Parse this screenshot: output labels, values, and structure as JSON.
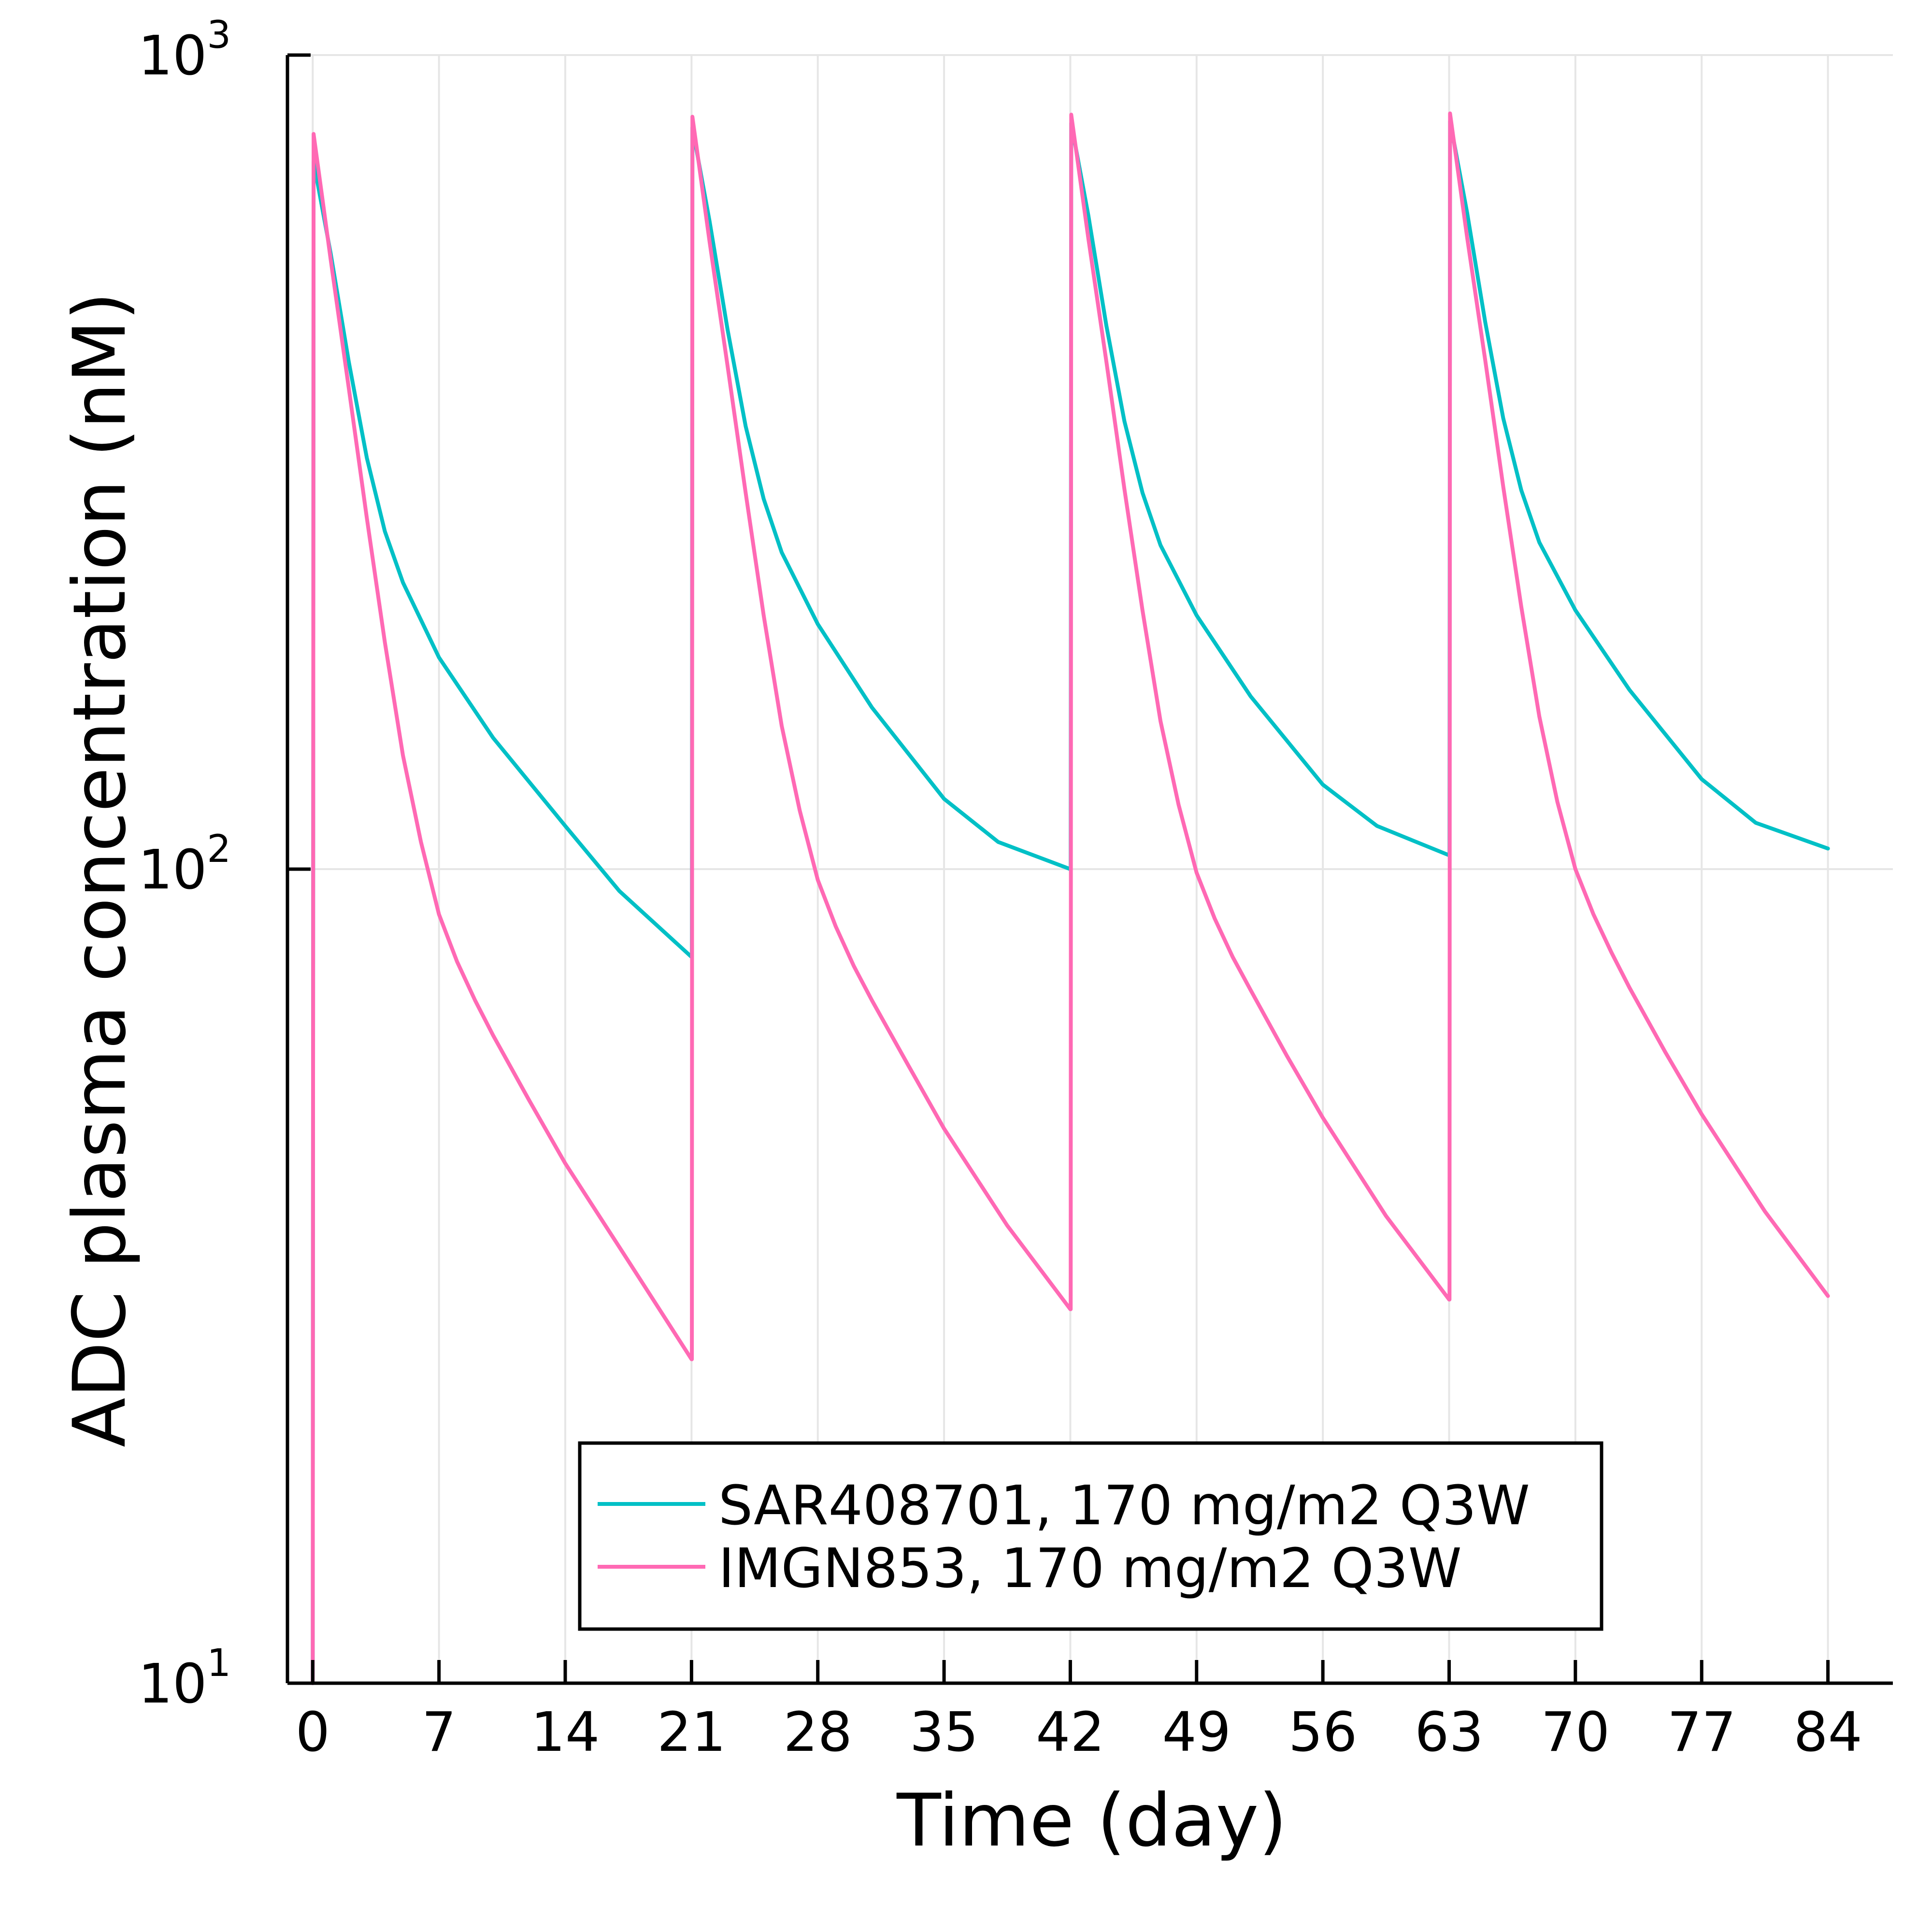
{
  "chart_data": {
    "type": "line",
    "title": "",
    "xlabel": "Time (day)",
    "ylabel": "ADC plasma concentration (nM)",
    "yscale": "log",
    "grid": true,
    "legend_position": "bottom-center",
    "xlim": [
      -1.4,
      87.6
    ],
    "ylim": [
      10,
      1000
    ],
    "xticks": [
      {
        "value": 0,
        "label": "0"
      },
      {
        "value": 7,
        "label": "7"
      },
      {
        "value": 14,
        "label": "14"
      },
      {
        "value": 21,
        "label": "21"
      },
      {
        "value": 28,
        "label": "28"
      },
      {
        "value": 35,
        "label": "35"
      },
      {
        "value": 42,
        "label": "42"
      },
      {
        "value": 49,
        "label": "49"
      },
      {
        "value": 56,
        "label": "56"
      },
      {
        "value": 63,
        "label": "63"
      },
      {
        "value": 70,
        "label": "70"
      },
      {
        "value": 77,
        "label": "77"
      },
      {
        "value": 84,
        "label": "84"
      }
    ],
    "yticks": [
      {
        "value": 10,
        "base": "10",
        "exp": "1"
      },
      {
        "value": 100,
        "base": "10",
        "exp": "2"
      },
      {
        "value": 1000,
        "base": "10",
        "exp": "3"
      }
    ],
    "series": [
      {
        "name": "SAR408701, 170 mg/m2 Q3W",
        "color": "#00c0c6",
        "points": [
          [
            0,
            10
          ],
          [
            0.05,
            740
          ],
          [
            1,
            570
          ],
          [
            2,
            420
          ],
          [
            3,
            320
          ],
          [
            4,
            260
          ],
          [
            5,
            225
          ],
          [
            7,
            182
          ],
          [
            10,
            145
          ],
          [
            14,
            113
          ],
          [
            17,
            94
          ],
          [
            21,
            78
          ],
          [
            21.02,
            78
          ],
          [
            21.05,
            815
          ],
          [
            22,
            625
          ],
          [
            23,
            460
          ],
          [
            24,
            350
          ],
          [
            25,
            285
          ],
          [
            26,
            245
          ],
          [
            28,
            200
          ],
          [
            31,
            158
          ],
          [
            35,
            122
          ],
          [
            38,
            108
          ],
          [
            42,
            100
          ],
          [
            42.02,
            100
          ],
          [
            42.05,
            825
          ],
          [
            43,
            635
          ],
          [
            44,
            465
          ],
          [
            45,
            355
          ],
          [
            46,
            290
          ],
          [
            47,
            250
          ],
          [
            49,
            205
          ],
          [
            52,
            163
          ],
          [
            56,
            127
          ],
          [
            59,
            113
          ],
          [
            63,
            104
          ],
          [
            63.02,
            104
          ],
          [
            63.05,
            830
          ],
          [
            64,
            640
          ],
          [
            65,
            470
          ],
          [
            66,
            358
          ],
          [
            67,
            292
          ],
          [
            68,
            252
          ],
          [
            70,
            208
          ],
          [
            73,
            166
          ],
          [
            77,
            129
          ],
          [
            80,
            114
          ],
          [
            84,
            106
          ]
        ]
      },
      {
        "name": "IMGN853, 170 mg/m2 Q3W",
        "color": "#ff69b4",
        "points": [
          [
            0,
            10
          ],
          [
            0.05,
            800
          ],
          [
            1,
            560
          ],
          [
            2,
            390
          ],
          [
            3,
            270
          ],
          [
            4,
            190
          ],
          [
            5,
            138
          ],
          [
            6,
            108
          ],
          [
            7,
            88
          ],
          [
            8,
            77
          ],
          [
            9,
            69
          ],
          [
            10,
            62.5
          ],
          [
            12,
            52
          ],
          [
            14,
            43.5
          ],
          [
            17.5,
            33
          ],
          [
            21,
            25
          ],
          [
            21.02,
            25
          ],
          [
            21.05,
            840
          ],
          [
            22,
            590
          ],
          [
            23,
            415
          ],
          [
            24,
            290
          ],
          [
            25,
            205
          ],
          [
            26,
            150
          ],
          [
            27,
            118
          ],
          [
            28,
            97
          ],
          [
            29,
            85
          ],
          [
            30,
            76
          ],
          [
            31,
            69
          ],
          [
            33,
            57.5
          ],
          [
            35,
            48
          ],
          [
            38.5,
            36.5
          ],
          [
            42,
            28.8
          ],
          [
            42.02,
            28.8
          ],
          [
            42.05,
            845
          ],
          [
            43,
            595
          ],
          [
            44,
            420
          ],
          [
            45,
            293
          ],
          [
            46,
            208
          ],
          [
            47,
            152
          ],
          [
            48,
            120
          ],
          [
            49,
            99
          ],
          [
            50,
            87
          ],
          [
            51,
            78
          ],
          [
            52,
            71
          ],
          [
            54,
            59
          ],
          [
            56,
            49.5
          ],
          [
            59.5,
            37.5
          ],
          [
            63,
            29.6
          ],
          [
            63.02,
            29.6
          ],
          [
            63.05,
            848
          ],
          [
            64,
            597
          ],
          [
            65,
            422
          ],
          [
            66,
            295
          ],
          [
            67,
            210
          ],
          [
            68,
            154
          ],
          [
            69,
            121
          ],
          [
            70,
            100
          ],
          [
            71,
            88
          ],
          [
            72,
            79
          ],
          [
            73,
            71.5
          ],
          [
            75,
            59.5
          ],
          [
            77,
            50
          ],
          [
            80.5,
            38
          ],
          [
            84,
            29.9
          ]
        ]
      }
    ]
  }
}
